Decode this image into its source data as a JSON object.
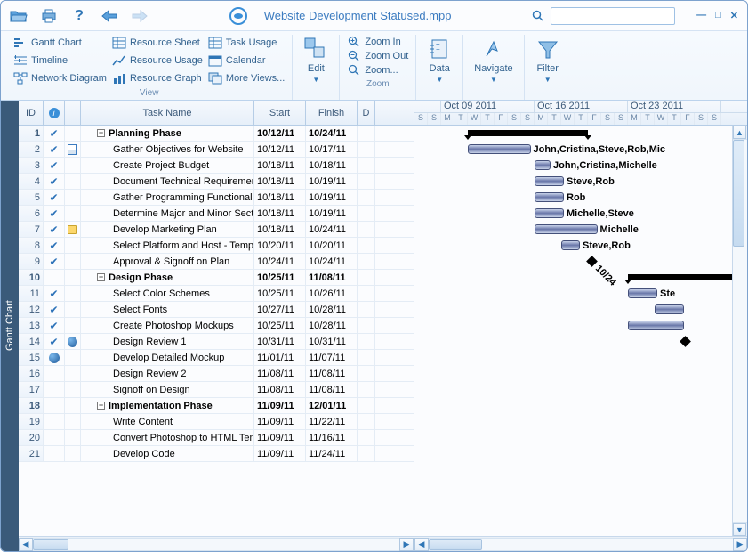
{
  "window": {
    "title": "Website Development Statused.mpp",
    "search_placeholder": ""
  },
  "ribbon": {
    "view": {
      "label": "View",
      "items_col1": [
        "Gantt Chart",
        "Timeline",
        "Network Diagram"
      ],
      "items_col2": [
        "Resource Sheet",
        "Resource Usage",
        "Resource Graph"
      ],
      "items_col3": [
        "Task Usage",
        "Calendar",
        "More Views..."
      ]
    },
    "edit": {
      "label": "Edit"
    },
    "zoom": {
      "label": "Zoom",
      "items": [
        "Zoom In",
        "Zoom Out",
        "Zoom..."
      ]
    },
    "data": {
      "label": "Data"
    },
    "navigate": {
      "label": "Navigate"
    },
    "filter": {
      "label": "Filter"
    }
  },
  "side_tab": "Gantt Chart",
  "grid": {
    "headers": {
      "id": "ID",
      "task": "Task Name",
      "start": "Start",
      "finish": "Finish",
      "d": "D"
    },
    "rows": [
      {
        "id": 1,
        "check": true,
        "ind2": "",
        "name": "Planning Phase",
        "start": "10/12/11",
        "finish": "10/24/11",
        "bold": true,
        "indent": 1,
        "outline": true
      },
      {
        "id": 2,
        "check": true,
        "ind2": "cal",
        "name": "Gather Objectives for Website",
        "start": "10/12/11",
        "finish": "10/17/11",
        "indent": 2
      },
      {
        "id": 3,
        "check": true,
        "ind2": "",
        "name": "Create Project Budget",
        "start": "10/18/11",
        "finish": "10/18/11",
        "indent": 2
      },
      {
        "id": 4,
        "check": true,
        "ind2": "",
        "name": "Document Technical Requirements",
        "start": "10/18/11",
        "finish": "10/19/11",
        "indent": 2
      },
      {
        "id": 5,
        "check": true,
        "ind2": "",
        "name": "Gather Programming Functionality",
        "start": "10/18/11",
        "finish": "10/19/11",
        "indent": 2
      },
      {
        "id": 6,
        "check": true,
        "ind2": "",
        "name": "Determine Major and Minor Sections",
        "start": "10/18/11",
        "finish": "10/19/11",
        "indent": 2
      },
      {
        "id": 7,
        "check": true,
        "ind2": "note",
        "name": "Develop Marketing Plan",
        "start": "10/18/11",
        "finish": "10/24/11",
        "indent": 2
      },
      {
        "id": 8,
        "check": true,
        "ind2": "",
        "name": "Select Platform and Host - Tempor...",
        "start": "10/20/11",
        "finish": "10/20/11",
        "indent": 2
      },
      {
        "id": 9,
        "check": true,
        "ind2": "",
        "name": "Approval & Signoff on Plan",
        "start": "10/24/11",
        "finish": "10/24/11",
        "indent": 2
      },
      {
        "id": 10,
        "check": false,
        "ind2": "",
        "name": "Design Phase",
        "start": "10/25/11",
        "finish": "11/08/11",
        "bold": true,
        "indent": 1,
        "outline": true
      },
      {
        "id": 11,
        "check": true,
        "ind2": "",
        "name": "Select Color Schemes",
        "start": "10/25/11",
        "finish": "10/26/11",
        "indent": 2
      },
      {
        "id": 12,
        "check": true,
        "ind2": "",
        "name": "Select Fonts",
        "start": "10/27/11",
        "finish": "10/28/11",
        "indent": 2
      },
      {
        "id": 13,
        "check": true,
        "ind2": "",
        "name": "Create Photoshop Mockups",
        "start": "10/25/11",
        "finish": "10/28/11",
        "indent": 2
      },
      {
        "id": 14,
        "check": true,
        "ind2": "globe",
        "name": "Design Review 1",
        "start": "10/31/11",
        "finish": "10/31/11",
        "indent": 2
      },
      {
        "id": 15,
        "check": false,
        "ind2": "",
        "ind1": "globe",
        "name": "Develop Detailed Mockup",
        "start": "11/01/11",
        "finish": "11/07/11",
        "indent": 2
      },
      {
        "id": 16,
        "check": false,
        "ind2": "",
        "name": "Design Review 2",
        "start": "11/08/11",
        "finish": "11/08/11",
        "indent": 2
      },
      {
        "id": 17,
        "check": false,
        "ind2": "",
        "name": "Signoff on Design",
        "start": "11/08/11",
        "finish": "11/08/11",
        "indent": 2
      },
      {
        "id": 18,
        "check": false,
        "ind2": "",
        "name": "Implementation Phase",
        "start": "11/09/11",
        "finish": "12/01/11",
        "bold": true,
        "indent": 1,
        "outline": true
      },
      {
        "id": 19,
        "check": false,
        "ind2": "",
        "name": "Write Content",
        "start": "11/09/11",
        "finish": "11/22/11",
        "indent": 2
      },
      {
        "id": 20,
        "check": false,
        "ind2": "",
        "name": "Convert Photoshop to HTML Templ...",
        "start": "11/09/11",
        "finish": "11/16/11",
        "indent": 2
      },
      {
        "id": 21,
        "check": false,
        "ind2": "",
        "name": "Develop Code",
        "start": "11/09/11",
        "finish": "11/24/11",
        "indent": 2
      }
    ]
  },
  "gantt": {
    "day_width": 15,
    "weekend_color": "#f0f0f0",
    "weeks": [
      {
        "label": "",
        "days": 2
      },
      {
        "label": "Oct 09 2011",
        "days": 7
      },
      {
        "label": "Oct 16 2011",
        "days": 7
      },
      {
        "label": "Oct 23 2011",
        "days": 7
      }
    ],
    "day_letters": [
      "S",
      "S",
      "M",
      "T",
      "W",
      "T",
      "F",
      "S",
      "S",
      "M",
      "T",
      "W",
      "T",
      "F",
      "S",
      "S",
      "M",
      "T",
      "W",
      "T",
      "F",
      "S",
      "S"
    ],
    "bars": [
      {
        "row": 0,
        "type": "summary",
        "start": 4,
        "end": 12
      },
      {
        "row": 1,
        "type": "task",
        "start": 4,
        "end": 8,
        "label": "John,Cristina,Steve,Rob,Mic"
      },
      {
        "row": 2,
        "type": "task",
        "start": 9,
        "end": 9.5,
        "label": "John,Cristina,Michelle"
      },
      {
        "row": 3,
        "type": "task",
        "start": 9,
        "end": 10.5,
        "label": "Steve,Rob"
      },
      {
        "row": 4,
        "type": "task",
        "start": 9,
        "end": 10.5,
        "label": "Rob"
      },
      {
        "row": 5,
        "type": "task",
        "start": 9,
        "end": 10.5,
        "label": "Michelle,Steve"
      },
      {
        "row": 6,
        "type": "task",
        "start": 9,
        "end": 13,
        "label": "Michelle"
      },
      {
        "row": 7,
        "type": "task",
        "start": 11,
        "end": 11.7,
        "label": "Steve,Rob"
      },
      {
        "row": 8,
        "type": "milestone",
        "start": 13,
        "label": "10/24"
      },
      {
        "row": 9,
        "type": "summary",
        "start": 16,
        "end": 23
      },
      {
        "row": 10,
        "type": "task",
        "start": 16,
        "end": 17.5,
        "label": "Ste"
      },
      {
        "row": 11,
        "type": "task",
        "start": 18,
        "end": 19.5
      },
      {
        "row": 12,
        "type": "task",
        "start": 16,
        "end": 19.5
      },
      {
        "row": 13,
        "type": "milestone",
        "start": 20
      }
    ]
  },
  "colors": {
    "accent": "#2f76b6",
    "border": "#bcd3ec"
  }
}
